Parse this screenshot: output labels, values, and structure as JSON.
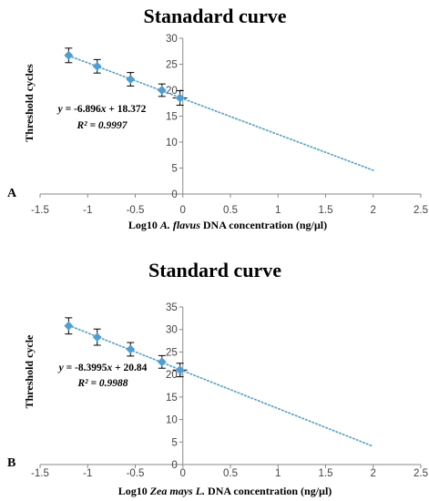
{
  "chart_data": [
    {
      "type": "scatter",
      "panel_label": "A",
      "title": "Stanadard curve",
      "xlabel_parts": [
        "Log10 ",
        "A. flavus",
        " DNA concentration (ng/µl)"
      ],
      "ylabel": "Threshold cycles",
      "xlim": [
        -1.5,
        2.5
      ],
      "ylim": [
        0,
        30
      ],
      "xticks": [
        "-1.5",
        "-1",
        "-0.5",
        "0",
        "0.5",
        "1",
        "1.5",
        "2",
        "2.5"
      ],
      "yticks": [
        "0",
        "5",
        "10",
        "15",
        "20",
        "25",
        "30"
      ],
      "points": [
        {
          "x": -1.2,
          "y": 26.7,
          "err": 1.4
        },
        {
          "x": -0.9,
          "y": 24.6,
          "err": 1.3
        },
        {
          "x": -0.55,
          "y": 22.1,
          "err": 1.3
        },
        {
          "x": -0.22,
          "y": 20.0,
          "err": 1.2
        },
        {
          "x": -0.03,
          "y": 18.5,
          "err": 1.4
        }
      ],
      "trendline": {
        "slope": -6.896,
        "intercept": 18.372,
        "x_range": [
          -1.2,
          2.0
        ],
        "style": "dotted"
      },
      "equation_parts": [
        "y",
        " = -6.896",
        "x",
        " + 18.372"
      ],
      "r2_label": "R² = 0.9997",
      "colors": {
        "marker": "#4a9fd6",
        "trendline": "#4a9fd6",
        "axis": "#8a8a8a",
        "errorbar": "#000000"
      }
    },
    {
      "type": "scatter",
      "panel_label": "B",
      "title": "Standard curve",
      "xlabel_parts": [
        "Log10 ",
        "Zea mays L.",
        " DNA concentration (ng/µl)"
      ],
      "ylabel": "Threshold cycle",
      "xlim": [
        -1.5,
        2.5
      ],
      "ylim": [
        0,
        35
      ],
      "xticks": [
        "-1.5",
        "-1",
        "-0.5",
        "0",
        "0.5",
        "1",
        "1.5",
        "2",
        "2.5"
      ],
      "yticks": [
        "0",
        "5",
        "10",
        "15",
        "20",
        "25",
        "30",
        "35"
      ],
      "points": [
        {
          "x": -1.2,
          "y": 30.8,
          "err": 1.8
        },
        {
          "x": -0.9,
          "y": 28.3,
          "err": 1.8
        },
        {
          "x": -0.55,
          "y": 25.6,
          "err": 1.5
        },
        {
          "x": -0.22,
          "y": 22.8,
          "err": 1.4
        },
        {
          "x": -0.03,
          "y": 21.0,
          "err": 1.5
        }
      ],
      "trendline": {
        "slope": -8.3995,
        "intercept": 20.84,
        "x_range": [
          -1.2,
          2.0
        ],
        "style": "dotted"
      },
      "equation_parts": [
        "y",
        " = -8.3995",
        "x",
        " + 20.84"
      ],
      "r2_label": "R² = 0.9988",
      "colors": {
        "marker": "#4a9fd6",
        "trendline": "#4a9fd6",
        "axis": "#8a8a8a",
        "errorbar": "#000000"
      }
    }
  ]
}
